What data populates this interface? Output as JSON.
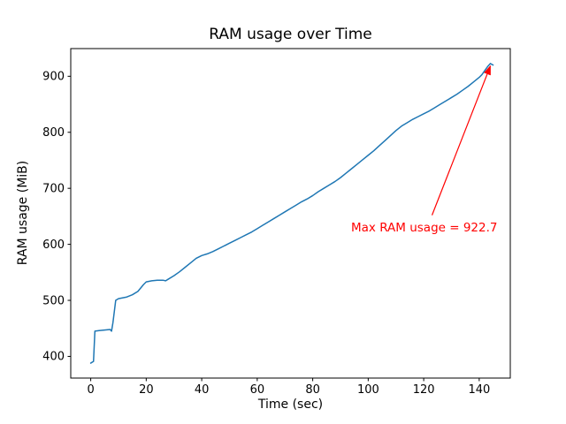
{
  "figure": {
    "background": "#ffffff"
  },
  "chart_data": {
    "type": "line",
    "title": "RAM usage over Time",
    "xlabel": "Time (sec)",
    "ylabel": "RAM usage (MiB)",
    "grid": false,
    "legend": null,
    "xlim": [
      -7.2,
      151.2
    ],
    "ylim": [
      361.3,
      949.4
    ],
    "xticks": [
      0,
      20,
      40,
      60,
      80,
      100,
      120,
      140
    ],
    "yticks": [
      400,
      500,
      600,
      700,
      800,
      900
    ],
    "series": [
      {
        "name": "RAM usage",
        "color": "#1f77b4",
        "x": [
          0,
          1,
          1.5,
          3,
          5,
          7,
          7.5,
          8,
          9,
          10,
          11,
          13,
          15,
          17,
          19,
          20,
          22,
          24,
          26,
          27,
          28,
          30,
          32,
          34,
          36,
          38,
          40,
          42,
          44,
          46,
          48,
          50,
          52,
          54,
          56,
          58,
          60,
          62,
          64,
          66,
          68,
          70,
          72,
          74,
          76,
          78,
          80,
          82,
          84,
          86,
          88,
          90,
          92,
          94,
          96,
          98,
          100,
          102,
          104,
          106,
          108,
          110,
          112,
          114,
          116,
          118,
          120,
          122,
          124,
          126,
          128,
          130,
          132,
          134,
          136,
          138,
          140,
          141,
          142,
          143,
          144,
          145
        ],
        "y": [
          388,
          391,
          445,
          446,
          447,
          448,
          445,
          460,
          500,
          503,
          504,
          506,
          510,
          516,
          528,
          533,
          535,
          536,
          536,
          535,
          538,
          544,
          551,
          559,
          567,
          575,
          580,
          583,
          587,
          592,
          597,
          602,
          607,
          612,
          617,
          622,
          628,
          634,
          640,
          646,
          652,
          658,
          664,
          670,
          676,
          681,
          687,
          694,
          700,
          706,
          712,
          719,
          727,
          735,
          743,
          751,
          759,
          767,
          776,
          785,
          794,
          803,
          811,
          817,
          823,
          828,
          833,
          838,
          844,
          850,
          856,
          862,
          868,
          875,
          882,
          890,
          898,
          903,
          910,
          917,
          922.7,
          920
        ]
      }
    ],
    "annotation": {
      "text": "Max RAM usage = 922.7",
      "color": "#ff0000",
      "text_xy": [
        94,
        628
      ],
      "arrow_tail_xy": [
        123,
        652
      ],
      "arrow_tip_xy": [
        144,
        918
      ],
      "max_value": 922.7
    }
  }
}
